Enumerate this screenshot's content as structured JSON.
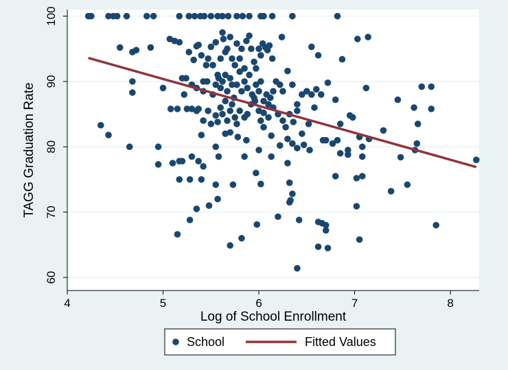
{
  "chart_data": {
    "type": "scatter",
    "xlabel": "Log of School Enrollment",
    "ylabel": "TAGG Graduation Rate",
    "xlim": [
      4,
      8.3
    ],
    "ylim": [
      58,
      101
    ],
    "x_ticks": [
      "4",
      "5",
      "6",
      "7",
      "8"
    ],
    "y_ticks": [
      "60",
      "70",
      "80",
      "90",
      "100"
    ],
    "x_tick_values": [
      4,
      5,
      6,
      7,
      8
    ],
    "y_tick_values": [
      60,
      70,
      80,
      90,
      100
    ],
    "grid": true,
    "legend_position": "bottom",
    "colors": {
      "points": "#1a476f",
      "line": "#90353b",
      "background": "#eaf2f3",
      "plot_bg": "#ffffff",
      "grid": "#eaf2f3"
    },
    "series": [
      {
        "name": "School",
        "kind": "scatter",
        "points": [
          [
            4.22,
            100
          ],
          [
            4.25,
            100
          ],
          [
            4.43,
            100
          ],
          [
            4.48,
            100
          ],
          [
            4.52,
            100
          ],
          [
            4.62,
            100
          ],
          [
            4.83,
            100
          ],
          [
            4.9,
            100
          ],
          [
            5.17,
            100
          ],
          [
            5.27,
            100
          ],
          [
            5.33,
            100
          ],
          [
            5.39,
            100
          ],
          [
            5.43,
            100
          ],
          [
            5.5,
            100
          ],
          [
            5.57,
            100
          ],
          [
            5.62,
            100
          ],
          [
            5.68,
            100
          ],
          [
            5.77,
            100
          ],
          [
            5.83,
            100
          ],
          [
            5.9,
            100
          ],
          [
            6.02,
            100
          ],
          [
            6.05,
            100
          ],
          [
            6.14,
            100
          ],
          [
            6.35,
            100
          ],
          [
            6.82,
            100
          ],
          [
            4.55,
            95.2
          ],
          [
            4.68,
            94.5
          ],
          [
            4.72,
            94.8
          ],
          [
            4.87,
            95.2
          ],
          [
            5.07,
            96.5
          ],
          [
            5.12,
            96.2
          ],
          [
            5.17,
            96.0
          ],
          [
            5.2,
            90.5
          ],
          [
            5.24,
            90.5
          ],
          [
            5.27,
            94.5
          ],
          [
            5.32,
            93.3
          ],
          [
            5.35,
            95.4
          ],
          [
            5.37,
            95.6
          ],
          [
            5.4,
            94.0
          ],
          [
            5.42,
            90.0
          ],
          [
            5.45,
            92.5
          ],
          [
            5.47,
            93.5
          ],
          [
            5.5,
            95.3
          ],
          [
            5.52,
            92.5
          ],
          [
            5.55,
            96.0
          ],
          [
            5.57,
            91.0
          ],
          [
            5.6,
            93.5
          ],
          [
            5.62,
            97.5
          ],
          [
            5.63,
            96.5
          ],
          [
            5.65,
            94.5
          ],
          [
            5.67,
            95.0
          ],
          [
            5.7,
            96.8
          ],
          [
            5.72,
            93.5
          ],
          [
            5.75,
            92.5
          ],
          [
            5.77,
            95.8
          ],
          [
            5.8,
            93.5
          ],
          [
            5.82,
            95.0
          ],
          [
            5.85,
            92.0
          ],
          [
            5.87,
            96.2
          ],
          [
            5.9,
            97.0
          ],
          [
            5.92,
            95.0
          ],
          [
            5.95,
            93.0
          ],
          [
            5.97,
            92.0
          ],
          [
            6.0,
            95.0
          ],
          [
            6.02,
            94.0
          ],
          [
            6.04,
            95.8
          ],
          [
            6.07,
            95.2
          ],
          [
            6.09,
            94.8
          ],
          [
            6.11,
            95.5
          ],
          [
            6.14,
            93.5
          ],
          [
            6.24,
            96.8
          ],
          [
            6.55,
            95.3
          ],
          [
            6.62,
            94.0
          ],
          [
            6.87,
            93.4
          ],
          [
            7.03,
            96.5
          ],
          [
            7.14,
            96.8
          ],
          [
            4.68,
            90.0
          ],
          [
            4.68,
            88.3
          ],
          [
            5.0,
            89.0
          ],
          [
            5.22,
            88.0
          ],
          [
            5.3,
            89.5
          ],
          [
            5.35,
            89.0
          ],
          [
            5.42,
            88.5
          ],
          [
            5.46,
            90.0
          ],
          [
            5.52,
            88.0
          ],
          [
            5.55,
            89.5
          ],
          [
            5.58,
            90.5
          ],
          [
            5.6,
            89.0
          ],
          [
            5.62,
            90.0
          ],
          [
            5.65,
            91.0
          ],
          [
            5.67,
            88.5
          ],
          [
            5.7,
            90.5
          ],
          [
            5.72,
            89.5
          ],
          [
            5.74,
            87.5
          ],
          [
            5.77,
            89.5
          ],
          [
            5.8,
            91.5
          ],
          [
            5.82,
            88.5
          ],
          [
            5.85,
            90.0
          ],
          [
            5.88,
            89.0
          ],
          [
            5.9,
            91.0
          ],
          [
            5.93,
            88.0
          ],
          [
            5.95,
            87.5
          ],
          [
            5.97,
            89.5
          ],
          [
            6.0,
            88.5
          ],
          [
            6.02,
            90.0
          ],
          [
            6.05,
            87.0
          ],
          [
            6.08,
            88.0
          ],
          [
            6.1,
            86.5
          ],
          [
            6.12,
            87.5
          ],
          [
            6.15,
            88.5
          ],
          [
            6.18,
            90.0
          ],
          [
            6.22,
            89.5
          ],
          [
            6.25,
            88.5
          ],
          [
            6.3,
            91.6
          ],
          [
            6.35,
            89.5
          ],
          [
            6.4,
            86.5
          ],
          [
            6.45,
            88.0
          ],
          [
            6.5,
            88.5
          ],
          [
            6.55,
            88.0
          ],
          [
            6.6,
            88.8
          ],
          [
            6.65,
            88.0
          ],
          [
            6.72,
            89.8
          ],
          [
            6.8,
            87.2
          ],
          [
            7.12,
            89.0
          ],
          [
            7.45,
            87.2
          ],
          [
            7.7,
            89.2
          ],
          [
            7.8,
            89.2
          ],
          [
            5.08,
            85.8
          ],
          [
            5.15,
            85.8
          ],
          [
            5.25,
            85.8
          ],
          [
            5.3,
            85.8
          ],
          [
            5.35,
            85.5
          ],
          [
            5.37,
            85.8
          ],
          [
            5.42,
            84.0
          ],
          [
            5.47,
            85.5
          ],
          [
            5.5,
            83.5
          ],
          [
            5.55,
            84.8
          ],
          [
            5.57,
            83.8
          ],
          [
            5.6,
            86.0
          ],
          [
            5.62,
            85.0
          ],
          [
            5.65,
            87.0
          ],
          [
            5.67,
            84.0
          ],
          [
            5.7,
            85.5
          ],
          [
            5.72,
            86.5
          ],
          [
            5.75,
            84.5
          ],
          [
            5.77,
            83.5
          ],
          [
            5.8,
            85.5
          ],
          [
            5.85,
            84.5
          ],
          [
            5.88,
            85.0
          ],
          [
            5.92,
            86.5
          ],
          [
            5.96,
            87.0
          ],
          [
            6.0,
            85.5
          ],
          [
            6.02,
            84.0
          ],
          [
            6.05,
            85.2
          ],
          [
            6.1,
            84.5
          ],
          [
            6.15,
            86.0
          ],
          [
            6.2,
            85.0
          ],
          [
            6.25,
            84.0
          ],
          [
            6.28,
            83.0
          ],
          [
            6.32,
            85.0
          ],
          [
            6.36,
            83.8
          ],
          [
            6.4,
            85.5
          ],
          [
            6.45,
            82.0
          ],
          [
            6.52,
            83.5
          ],
          [
            6.58,
            86.0
          ],
          [
            6.7,
            81.0
          ],
          [
            6.85,
            83.5
          ],
          [
            6.95,
            84.8
          ],
          [
            6.98,
            84.5
          ],
          [
            7.62,
            86.0
          ],
          [
            7.66,
            83.5
          ],
          [
            7.8,
            85.8
          ],
          [
            4.35,
            83.3
          ],
          [
            4.43,
            81.8
          ],
          [
            4.65,
            80.0
          ],
          [
            4.95,
            80.0
          ],
          [
            5.4,
            81.8
          ],
          [
            5.55,
            80.0
          ],
          [
            5.65,
            82.0
          ],
          [
            5.7,
            82.2
          ],
          [
            5.78,
            81.5
          ],
          [
            5.87,
            81.0
          ],
          [
            6.05,
            83.0
          ],
          [
            6.13,
            81.7
          ],
          [
            6.22,
            80.2
          ],
          [
            6.3,
            81.2
          ],
          [
            6.35,
            80.5
          ],
          [
            6.4,
            79.8
          ],
          [
            6.47,
            80.3
          ],
          [
            6.53,
            79.5
          ],
          [
            6.67,
            81.0
          ],
          [
            6.77,
            80.5
          ],
          [
            6.82,
            81.0
          ],
          [
            6.85,
            79.0
          ],
          [
            6.93,
            78.8
          ],
          [
            7.05,
            81.5
          ],
          [
            7.08,
            80.0
          ],
          [
            7.08,
            78.5
          ],
          [
            7.15,
            81.2
          ],
          [
            7.3,
            82.5
          ],
          [
            7.65,
            80.5
          ],
          [
            4.95,
            77.3
          ],
          [
            5.1,
            77.5
          ],
          [
            5.17,
            77.8
          ],
          [
            5.2,
            77.8
          ],
          [
            5.3,
            78.5
          ],
          [
            5.37,
            77.8
          ],
          [
            5.42,
            77.0
          ],
          [
            5.58,
            78.5
          ],
          [
            5.73,
            74.2
          ],
          [
            5.85,
            78.5
          ],
          [
            6.0,
            79.5
          ],
          [
            6.13,
            78.5
          ],
          [
            6.3,
            77.5
          ],
          [
            6.32,
            74.5
          ],
          [
            6.8,
            75.5
          ],
          [
            6.93,
            79.5
          ],
          [
            7.08,
            75.5
          ],
          [
            7.38,
            73.2
          ],
          [
            7.48,
            78.4
          ],
          [
            7.55,
            74.2
          ],
          [
            7.63,
            79.5
          ],
          [
            8.27,
            78.0
          ],
          [
            5.17,
            75.0
          ],
          [
            5.28,
            75.0
          ],
          [
            5.4,
            75.0
          ],
          [
            5.55,
            74.2
          ],
          [
            5.97,
            76.0
          ],
          [
            6.02,
            74.3
          ],
          [
            6.35,
            72.8
          ],
          [
            7.02,
            75.2
          ],
          [
            5.28,
            68.8
          ],
          [
            5.35,
            70.5
          ],
          [
            5.48,
            71.0
          ],
          [
            5.57,
            72.0
          ],
          [
            5.98,
            68.1
          ],
          [
            6.2,
            69.3
          ],
          [
            6.32,
            71.5
          ],
          [
            6.33,
            71.8
          ],
          [
            6.42,
            68.8
          ],
          [
            6.62,
            68.5
          ],
          [
            6.66,
            68.3
          ],
          [
            6.7,
            68.0
          ],
          [
            6.7,
            67.2
          ],
          [
            7.02,
            70.9
          ],
          [
            7.85,
            68.0
          ],
          [
            5.15,
            66.6
          ],
          [
            5.7,
            64.9
          ],
          [
            5.82,
            66.0
          ],
          [
            6.62,
            64.7
          ],
          [
            6.72,
            64.5
          ],
          [
            7.05,
            65.8
          ],
          [
            6.4,
            61.4
          ]
        ]
      },
      {
        "name": "Fitted Values",
        "kind": "line",
        "points": [
          [
            4.22,
            93.6
          ],
          [
            8.27,
            76.9
          ]
        ]
      }
    ]
  }
}
